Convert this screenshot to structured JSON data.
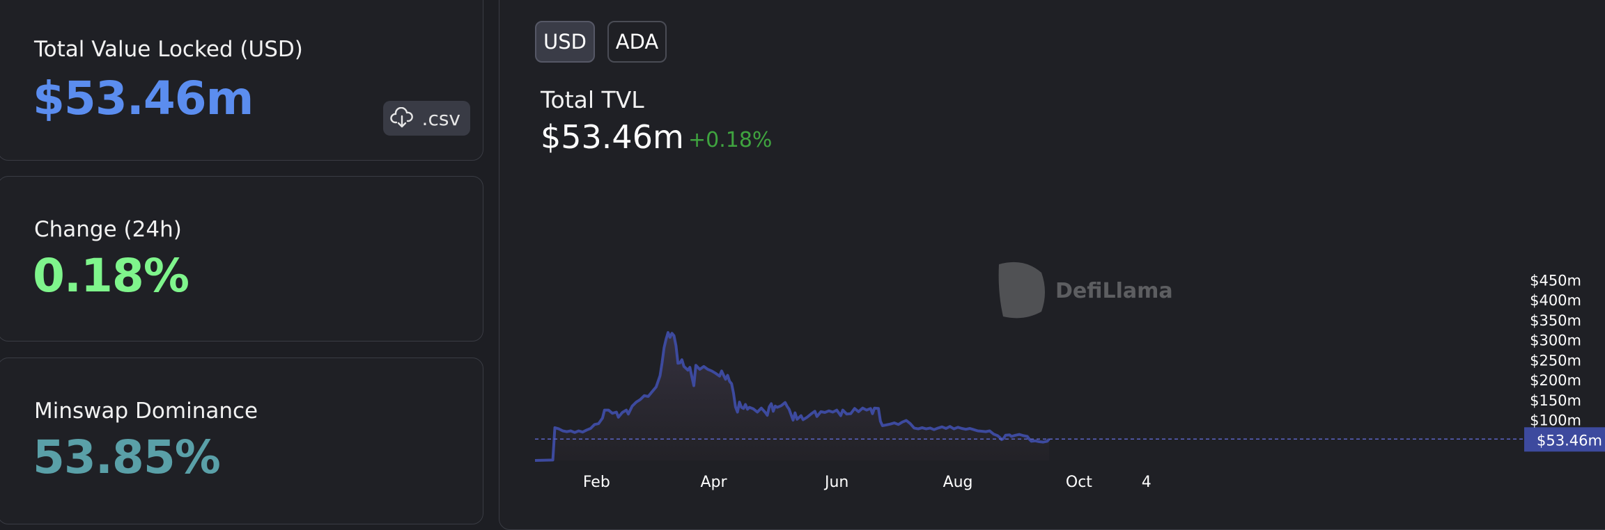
{
  "stats": {
    "tvl": {
      "label": "Total Value Locked (USD)",
      "value": "$53.46m",
      "color": "#5b8def"
    },
    "csv": {
      "label": ".csv",
      "icon": "cloud-download-icon"
    },
    "change": {
      "label": "Change (24h)",
      "value": "0.18%",
      "color": "#7ff58c"
    },
    "dominance": {
      "label": "Minswap Dominance",
      "value": "53.85%",
      "color": "#5aa0a8"
    }
  },
  "toggles": {
    "usd": "USD",
    "ada": "ADA"
  },
  "chart_header": {
    "title": "Total TVL",
    "value": "$53.46m",
    "change": "+0.18%",
    "change_color": "#3fa33f"
  },
  "watermark": {
    "text": "DefiLlama"
  },
  "chart_data": {
    "type": "area",
    "title": "Total TVL",
    "series": [
      {
        "color": "#3d4a9e"
      }
    ],
    "y_unit": "USD millions",
    "ylim": [
      0,
      450
    ],
    "y_ticks": [
      100,
      150,
      200,
      250,
      300,
      350,
      400,
      450
    ],
    "y_tick_labels": [
      "$100m",
      "$150m",
      "$200m",
      "$250m",
      "$300m",
      "$350m",
      "$400m",
      "$450m"
    ],
    "x_tick_labels": [
      "Feb",
      "Apr",
      "Jun",
      "Aug",
      "Oct",
      "4"
    ],
    "x_tick_day_index": [
      31,
      90,
      152,
      213,
      274,
      308
    ],
    "current_value_label": "$53.46m",
    "current_value": 53.46,
    "points": [
      [
        0,
        0
      ],
      [
        9,
        1
      ],
      [
        10,
        82
      ],
      [
        12,
        79
      ],
      [
        14,
        74
      ],
      [
        16,
        72
      ],
      [
        18,
        74
      ],
      [
        20,
        70
      ],
      [
        22,
        74
      ],
      [
        24,
        71
      ],
      [
        26,
        76
      ],
      [
        28,
        80
      ],
      [
        30,
        90
      ],
      [
        32,
        92
      ],
      [
        34,
        106
      ],
      [
        35,
        126
      ],
      [
        37,
        126
      ],
      [
        39,
        118
      ],
      [
        41,
        121
      ],
      [
        42,
        108
      ],
      [
        44,
        120
      ],
      [
        46,
        126
      ],
      [
        47,
        116
      ],
      [
        49,
        136
      ],
      [
        51,
        146
      ],
      [
        53,
        152
      ],
      [
        55,
        162
      ],
      [
        57,
        160
      ],
      [
        59,
        172
      ],
      [
        61,
        184
      ],
      [
        63,
        212
      ],
      [
        64,
        244
      ],
      [
        65,
        282
      ],
      [
        66,
        303
      ],
      [
        67,
        320
      ],
      [
        68,
        308
      ],
      [
        69,
        318
      ],
      [
        70,
        312
      ],
      [
        71,
        287
      ],
      [
        72,
        243
      ],
      [
        73,
        244
      ],
      [
        74,
        252
      ],
      [
        75,
        235
      ],
      [
        77,
        226
      ],
      [
        78,
        233
      ],
      [
        79,
        210
      ],
      [
        80,
        187
      ],
      [
        81,
        238
      ],
      [
        83,
        228
      ],
      [
        85,
        235
      ],
      [
        87,
        228
      ],
      [
        89,
        224
      ],
      [
        91,
        218
      ],
      [
        93,
        211
      ],
      [
        94,
        224
      ],
      [
        95,
        213
      ],
      [
        96,
        203
      ],
      [
        97,
        213
      ],
      [
        98,
        198
      ],
      [
        99,
        192
      ],
      [
        100,
        168
      ],
      [
        101,
        134
      ],
      [
        102,
        121
      ],
      [
        103,
        146
      ],
      [
        104,
        133
      ],
      [
        105,
        130
      ],
      [
        106,
        140
      ],
      [
        107,
        128
      ],
      [
        108,
        133
      ],
      [
        110,
        129
      ],
      [
        112,
        121
      ],
      [
        114,
        131
      ],
      [
        116,
        120
      ],
      [
        117,
        113
      ],
      [
        118,
        134
      ],
      [
        119,
        142
      ],
      [
        120,
        123
      ],
      [
        121,
        136
      ],
      [
        122,
        133
      ],
      [
        124,
        137
      ],
      [
        126,
        145
      ],
      [
        127,
        135
      ],
      [
        128,
        128
      ],
      [
        129,
        114
      ],
      [
        130,
        101
      ],
      [
        131,
        119
      ],
      [
        132,
        103
      ],
      [
        134,
        112
      ],
      [
        135,
        102
      ],
      [
        137,
        108
      ],
      [
        139,
        116
      ],
      [
        141,
        123
      ],
      [
        142,
        110
      ],
      [
        144,
        122
      ],
      [
        146,
        120
      ],
      [
        148,
        124
      ],
      [
        150,
        121
      ],
      [
        152,
        126
      ],
      [
        154,
        112
      ],
      [
        155,
        126
      ],
      [
        157,
        116
      ],
      [
        159,
        117
      ],
      [
        161,
        130
      ],
      [
        163,
        122
      ],
      [
        165,
        131
      ],
      [
        167,
        126
      ],
      [
        169,
        130
      ],
      [
        170,
        117
      ],
      [
        171,
        131
      ],
      [
        173,
        130
      ],
      [
        174,
        98
      ],
      [
        175,
        87
      ],
      [
        177,
        89
      ],
      [
        179,
        91
      ],
      [
        181,
        94
      ],
      [
        183,
        90
      ],
      [
        185,
        96
      ],
      [
        187,
        100
      ],
      [
        189,
        92
      ],
      [
        191,
        81
      ],
      [
        193,
        79
      ],
      [
        195,
        82
      ],
      [
        197,
        79
      ],
      [
        199,
        81
      ],
      [
        201,
        77
      ],
      [
        203,
        81
      ],
      [
        205,
        84
      ],
      [
        207,
        80
      ],
      [
        209,
        85
      ],
      [
        211,
        79
      ],
      [
        213,
        83
      ],
      [
        215,
        80
      ],
      [
        217,
        78
      ],
      [
        219,
        80
      ],
      [
        221,
        77
      ],
      [
        223,
        74
      ],
      [
        225,
        73
      ],
      [
        227,
        72
      ],
      [
        229,
        74
      ],
      [
        231,
        66
      ],
      [
        233,
        62
      ],
      [
        234,
        58
      ],
      [
        235,
        52
      ],
      [
        236,
        55
      ],
      [
        237,
        63
      ],
      [
        239,
        64
      ],
      [
        240,
        60
      ],
      [
        242,
        63
      ],
      [
        244,
        65
      ],
      [
        246,
        62
      ],
      [
        248,
        60
      ],
      [
        249,
        53
      ],
      [
        250,
        48
      ],
      [
        252,
        49
      ],
      [
        254,
        47
      ],
      [
        256,
        46
      ],
      [
        258,
        48
      ],
      [
        259,
        53.46
      ]
    ]
  }
}
